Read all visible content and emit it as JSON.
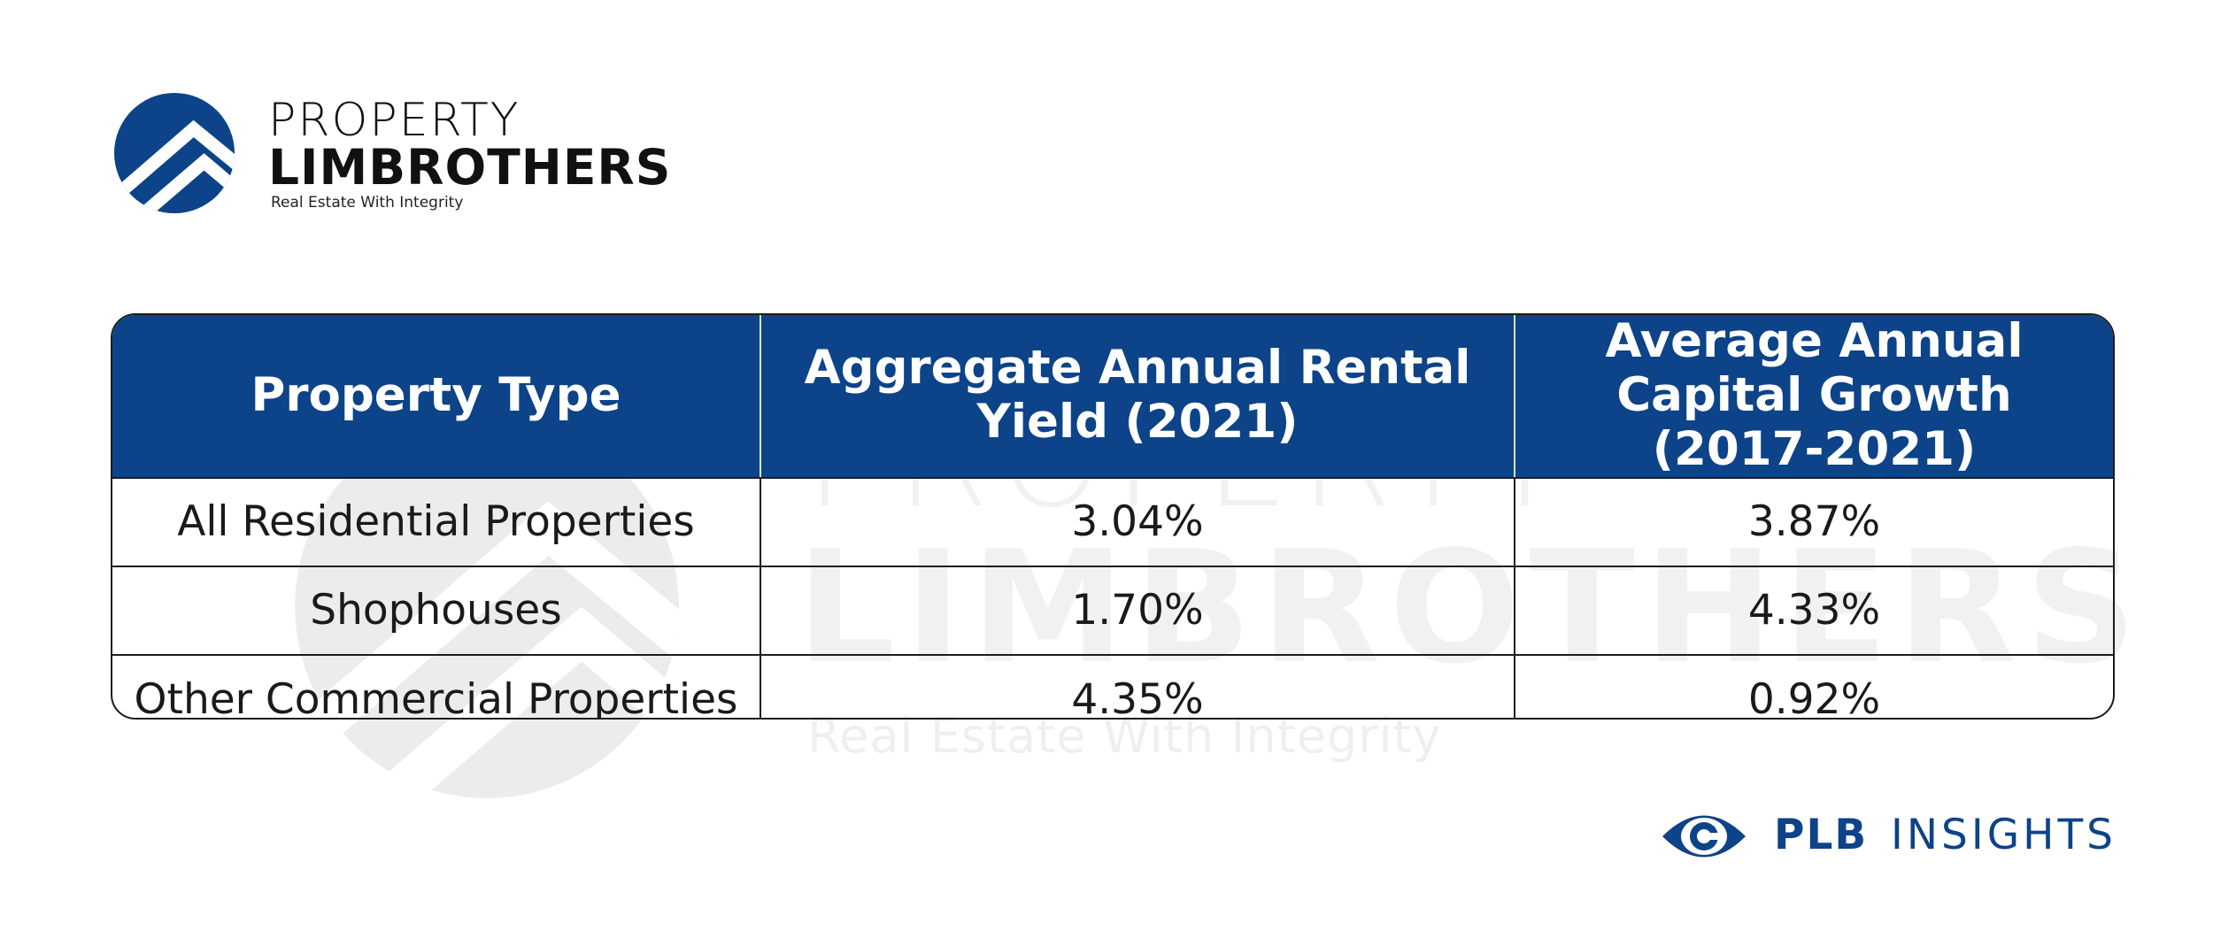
{
  "brand": {
    "line1": "PROPERTY",
    "line2": "LIMBROTHERS",
    "tagline": "Real Estate With Integrity",
    "color": "#0d4388",
    "icon": "house-roof-logo-icon"
  },
  "watermark": {
    "line1": "PROPERTY",
    "line2": "LIMBROTHERS",
    "tagline": "Real Estate With Integrity"
  },
  "table": {
    "header_color": "#0d4388",
    "headers": [
      "Property Type",
      "Aggregate Annual Rental Yield (2021)",
      "Average Annual Capital Growth (2017-2021)"
    ],
    "rows": [
      [
        "All Residential Properties",
        "3.04%",
        "3.87%"
      ],
      [
        "Shophouses",
        "1.70%",
        "4.33%"
      ],
      [
        "Other Commercial Properties",
        "4.35%",
        "0.92%"
      ]
    ]
  },
  "badge": {
    "bold": "PLB",
    "text": "INSIGHTS",
    "icon": "eye-icon"
  }
}
